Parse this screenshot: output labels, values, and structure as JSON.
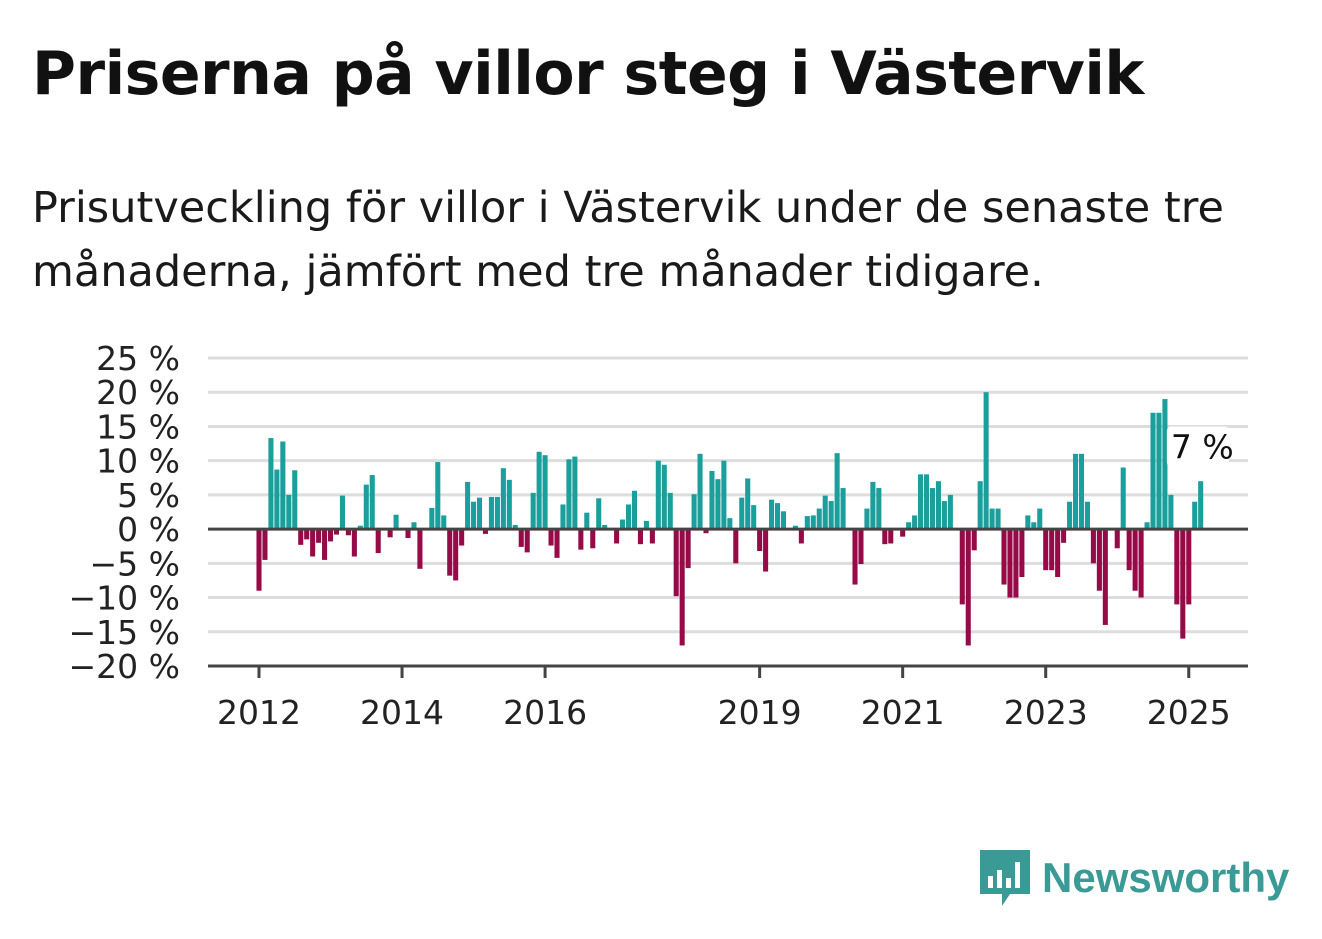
{
  "title": "Priserna på villor steg i Västervik",
  "subtitle": "Prisutveckling för villor i Västervik under de senaste tre månaderna, jämfört med tre månader tidigare.",
  "brand": "Newsworthy",
  "colors": {
    "positive": "#1a9f9c",
    "negative": "#960a48",
    "grid": "#dddddd",
    "axis": "#444444",
    "brand": "#3a9b96"
  },
  "chart_data": {
    "type": "bar",
    "ylim": [
      -20,
      25
    ],
    "yticks": [
      "25 %",
      "20 %",
      "15 %",
      "10 %",
      "5 %",
      "0 %",
      "−5 %",
      "−10 %",
      "−15 %",
      "−20 %"
    ],
    "ytick_values": [
      25,
      20,
      15,
      10,
      5,
      0,
      -5,
      -10,
      -15,
      -20
    ],
    "xticks": [
      {
        "label": "2012",
        "value": 2012.0
      },
      {
        "label": "2014",
        "value": 2014.0
      },
      {
        "label": "2016",
        "value": 2016.0
      },
      {
        "label": "2019",
        "value": 2019.0
      },
      {
        "label": "2021",
        "value": 2021.0
      },
      {
        "label": "2023",
        "value": 2023.0
      },
      {
        "label": "2025",
        "value": 2025.0
      }
    ],
    "x_start": 2012.0,
    "x_step_months": 1,
    "annotation": {
      "text": "7 %"
    },
    "values": [
      -9,
      -4.5,
      13.3,
      8.7,
      12.8,
      5,
      8.6,
      -2.3,
      -1.5,
      -4,
      -2,
      -4.5,
      -1.8,
      -0.8,
      4.9,
      -0.9,
      -4,
      0.5,
      6.5,
      7.9,
      -3.5,
      0,
      -1.2,
      2.1,
      0,
      -1.3,
      1,
      -5.8,
      0,
      3.1,
      9.8,
      2,
      -6.8,
      -7.5,
      -2.4,
      6.9,
      4,
      4.6,
      -0.7,
      4.7,
      4.7,
      8.9,
      7.2,
      0.6,
      -2.6,
      -3.4,
      5.3,
      11.3,
      10.8,
      -2.4,
      -4.2,
      3.6,
      10.2,
      10.6,
      -3,
      2.4,
      -2.8,
      4.5,
      0.6,
      0,
      -2.1,
      1.4,
      3.6,
      5.6,
      -2.2,
      1.2,
      -2.1,
      10,
      9.4,
      5.3,
      -9.8,
      -17,
      -5.7,
      5.1,
      11,
      -0.6,
      8.5,
      7.3,
      10,
      1.6,
      -5,
      4.6,
      7.4,
      3.5,
      -3.2,
      -6.2,
      4.3,
      3.8,
      2.6,
      0,
      0.5,
      -2.1,
      1.9,
      2,
      3,
      4.9,
      4.1,
      11.1,
      6,
      0,
      -8.1,
      -5.1,
      3,
      6.9,
      6,
      -2.2,
      -2.1,
      0,
      -1.1,
      1,
      2,
      8,
      8,
      6,
      7,
      4.1,
      5,
      0,
      -11,
      -17,
      -3.1,
      7,
      20,
      3,
      3,
      -8.1,
      -10,
      -10,
      -7,
      2,
      1,
      3,
      -6,
      -6,
      -7,
      -2,
      4,
      11,
      11,
      4,
      -5,
      -9,
      -14,
      0,
      -2.8,
      9,
      -6,
      -9,
      -10,
      1,
      17,
      17,
      19,
      5,
      -11,
      -16,
      -11,
      4,
      7
    ]
  }
}
